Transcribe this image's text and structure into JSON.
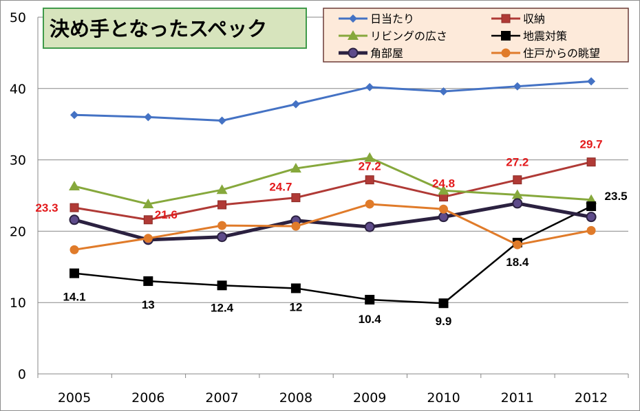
{
  "chart_data": {
    "type": "line",
    "title": "決め手となったスペック",
    "xlabel": "",
    "ylabel": "",
    "ylim": [
      0,
      50
    ],
    "yticks": [
      "0",
      "10",
      "20",
      "30",
      "40",
      "50"
    ],
    "categories": [
      "2005",
      "2006",
      "2007",
      "2008",
      "2009",
      "2010",
      "2011",
      "2012"
    ],
    "grid": true,
    "legend_position": "top-right",
    "series": [
      {
        "name": "日当たり",
        "color": "#4472c4",
        "marker": "diamond",
        "values": [
          36.3,
          36.0,
          35.5,
          37.8,
          40.2,
          39.6,
          40.3,
          41.0
        ],
        "labels": []
      },
      {
        "name": "収納",
        "color": "#b03a36",
        "marker": "square",
        "values": [
          23.3,
          21.6,
          23.7,
          24.7,
          27.2,
          24.8,
          27.2,
          29.7
        ],
        "labels": [
          "23.3",
          "21.6",
          "",
          "24.7",
          "27.2",
          "24.8",
          "27.2",
          "29.7"
        ],
        "label_color": "#e31a1c"
      },
      {
        "name": "リビングの広さ",
        "color": "#86a83c",
        "marker": "triangle",
        "values": [
          26.3,
          23.8,
          25.8,
          28.8,
          30.3,
          25.7,
          25.1,
          24.4
        ],
        "labels": []
      },
      {
        "name": "地震対策",
        "color": "#000000",
        "marker": "square-lg",
        "values": [
          14.1,
          13,
          12.4,
          12,
          10.4,
          9.9,
          18.4,
          23.5
        ],
        "labels": [
          "14.1",
          "13",
          "12.4",
          "12",
          "10.4",
          "9.9",
          "18.4",
          "23.5"
        ],
        "label_color": "#000000"
      },
      {
        "name": "角部屋",
        "color": "#2b2140",
        "marker": "circle-purple",
        "values": [
          21.6,
          18.8,
          19.2,
          21.5,
          20.6,
          22.0,
          23.9,
          22.0
        ],
        "labels": []
      },
      {
        "name": "住戸からの眺望",
        "color": "#e07b2a",
        "marker": "circle",
        "values": [
          17.4,
          19.0,
          20.8,
          20.7,
          23.8,
          23.1,
          18.1,
          20.1
        ],
        "labels": []
      }
    ]
  }
}
